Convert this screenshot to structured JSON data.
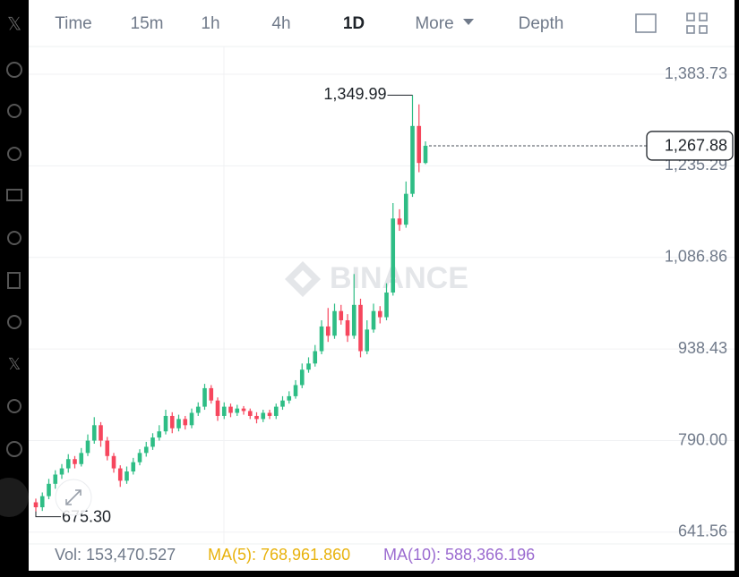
{
  "tabs": [
    "Time",
    "15m",
    "1h",
    "4h",
    "1D",
    "More",
    "Depth"
  ],
  "active_tab": 4,
  "chart_data": {
    "type": "candlestick",
    "open": [
      690,
      682,
      700,
      720,
      735,
      745,
      760,
      752,
      770,
      790,
      815,
      790,
      765,
      745,
      725,
      740,
      755,
      770,
      780,
      795,
      805,
      830,
      810,
      825,
      815,
      835,
      845,
      875,
      855,
      830,
      845,
      835,
      842,
      838,
      830,
      825,
      835,
      830,
      845,
      855,
      862,
      880,
      905,
      915,
      935,
      975,
      960,
      1000,
      985,
      960,
      1010,
      935,
      970,
      1000,
      990,
      1030,
      1150,
      1140,
      1190,
      1300,
      1240
    ],
    "high": [
      696,
      706,
      728,
      742,
      752,
      768,
      765,
      778,
      800,
      828,
      820,
      796,
      770,
      750,
      748,
      762,
      776,
      788,
      802,
      815,
      840,
      836,
      832,
      830,
      842,
      852,
      882,
      880,
      860,
      852,
      850,
      848,
      846,
      842,
      836,
      840,
      840,
      850,
      862,
      870,
      888,
      915,
      925,
      945,
      985,
      1005,
      1012,
      1010,
      995,
      1060,
      1020,
      985,
      1012,
      1008,
      1045,
      1175,
      1165,
      1210,
      1349.99,
      1335,
      1275
    ],
    "low": [
      675.3,
      676,
      695,
      712,
      728,
      738,
      745,
      748,
      765,
      785,
      780,
      758,
      738,
      715,
      720,
      735,
      750,
      764,
      775,
      790,
      800,
      802,
      805,
      808,
      810,
      830,
      840,
      850,
      822,
      825,
      828,
      830,
      832,
      825,
      818,
      820,
      825,
      825,
      840,
      850,
      858,
      875,
      900,
      910,
      930,
      950,
      955,
      978,
      950,
      955,
      925,
      930,
      965,
      980,
      985,
      1025,
      1130,
      1135,
      1185,
      1225,
      1238
    ],
    "close": [
      682,
      700,
      720,
      735,
      745,
      760,
      752,
      770,
      790,
      815,
      790,
      765,
      745,
      725,
      740,
      755,
      770,
      780,
      795,
      805,
      830,
      810,
      825,
      815,
      835,
      845,
      875,
      855,
      830,
      845,
      835,
      842,
      838,
      830,
      825,
      835,
      830,
      845,
      855,
      862,
      880,
      905,
      915,
      935,
      975,
      960,
      1000,
      985,
      960,
      1010,
      935,
      970,
      1000,
      990,
      1030,
      1150,
      1140,
      1190,
      1300,
      1240,
      1267.88
    ],
    "colors": {
      "up": "#2ebd85",
      "down": "#f6465d"
    },
    "ylim": [
      622.6,
      1424.4
    ],
    "yticks": [
      641.56,
      {
        "value": 790,
        "label": "790.00"
      },
      938.43,
      {
        "value": 1086.86,
        "label": "1,086.86"
      },
      {
        "value": 1235.29,
        "label": "1,235.29"
      },
      {
        "value": 1383.73,
        "label": "1,383.73"
      }
    ],
    "grid": true,
    "high_marker": {
      "value": 1349.99,
      "label": "1,349.99"
    },
    "low_marker": {
      "value": 675.3,
      "label": "675.30"
    },
    "last_price": {
      "value": 1267.88,
      "label": "1,267.88"
    },
    "watermark": "BINANCE",
    "indicators": [
      {
        "text": "Vol: 153,470.527",
        "color": "#707a8a"
      },
      {
        "text": "MA(5): 768,961.860",
        "color": "#e8b20c"
      },
      {
        "text": "MA(10): 588,366.196",
        "color": "#9b6bd0"
      }
    ]
  }
}
